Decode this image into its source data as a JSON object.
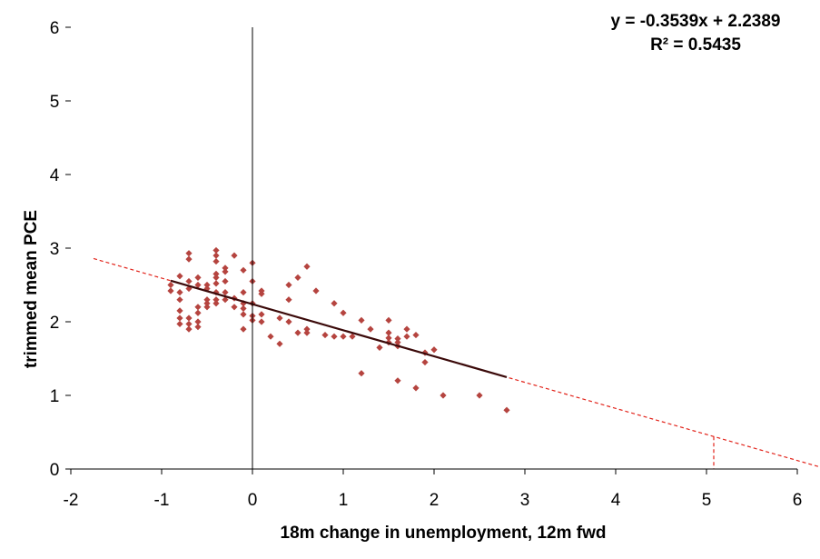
{
  "chart_data": {
    "type": "scatter",
    "title": "",
    "xlabel": "18m change in unemployment,  12m fwd",
    "ylabel": "trimmed mean PCE",
    "xlim": [
      -2,
      6
    ],
    "ylim": [
      0,
      6
    ],
    "x_ticks": [
      "-2",
      "-1",
      "0",
      "1",
      "2",
      "3",
      "4",
      "5",
      "6"
    ],
    "y_ticks": [
      "0",
      "1",
      "2",
      "3",
      "4",
      "5",
      "6"
    ],
    "grid": false,
    "legend": "none",
    "colors": {
      "points": "#B5443F",
      "fit_line": "#3B0A0A",
      "extension_line": "#E2231A",
      "axes": "#000000"
    },
    "annotation": {
      "equation": "y = -0.3539x  + 2.2389",
      "r_squared": "R² = 0.5435"
    },
    "fit": {
      "slope": -0.3539,
      "intercept": 2.2389,
      "solid_x_range": [
        -0.9,
        2.8
      ],
      "dashed_x_range": [
        -1.75,
        6.25
      ]
    },
    "marker_x": 5.08,
    "points": [
      [
        -0.9,
        2.5
      ],
      [
        -0.9,
        2.42
      ],
      [
        -0.8,
        2.62
      ],
      [
        -0.8,
        2.4
      ],
      [
        -0.8,
        2.3
      ],
      [
        -0.8,
        2.15
      ],
      [
        -0.8,
        2.05
      ],
      [
        -0.8,
        1.97
      ],
      [
        -0.7,
        2.93
      ],
      [
        -0.7,
        2.85
      ],
      [
        -0.7,
        2.55
      ],
      [
        -0.7,
        2.45
      ],
      [
        -0.7,
        2.05
      ],
      [
        -0.7,
        1.97
      ],
      [
        -0.7,
        1.9
      ],
      [
        -0.6,
        2.6
      ],
      [
        -0.6,
        2.5
      ],
      [
        -0.6,
        2.2
      ],
      [
        -0.6,
        2.12
      ],
      [
        -0.6,
        2.0
      ],
      [
        -0.6,
        1.93
      ],
      [
        -0.5,
        2.5
      ],
      [
        -0.5,
        2.45
      ],
      [
        -0.5,
        2.3
      ],
      [
        -0.5,
        2.25
      ],
      [
        -0.5,
        2.2
      ],
      [
        -0.4,
        2.97
      ],
      [
        -0.4,
        2.9
      ],
      [
        -0.4,
        2.82
      ],
      [
        -0.4,
        2.65
      ],
      [
        -0.4,
        2.6
      ],
      [
        -0.4,
        2.52
      ],
      [
        -0.4,
        2.4
      ],
      [
        -0.4,
        2.3
      ],
      [
        -0.4,
        2.25
      ],
      [
        -0.3,
        2.73
      ],
      [
        -0.3,
        2.68
      ],
      [
        -0.3,
        2.55
      ],
      [
        -0.3,
        2.4
      ],
      [
        -0.3,
        2.3
      ],
      [
        -0.2,
        2.9
      ],
      [
        -0.2,
        2.32
      ],
      [
        -0.2,
        2.2
      ],
      [
        -0.1,
        2.7
      ],
      [
        -0.1,
        2.4
      ],
      [
        -0.1,
        2.25
      ],
      [
        -0.1,
        2.18
      ],
      [
        -0.1,
        2.1
      ],
      [
        -0.1,
        1.9
      ],
      [
        0.0,
        2.8
      ],
      [
        0.0,
        2.55
      ],
      [
        0.0,
        2.25
      ],
      [
        0.0,
        2.08
      ],
      [
        0.0,
        2.02
      ],
      [
        0.1,
        2.42
      ],
      [
        0.1,
        2.38
      ],
      [
        0.1,
        2.1
      ],
      [
        0.1,
        2.0
      ],
      [
        0.2,
        1.8
      ],
      [
        0.3,
        2.05
      ],
      [
        0.3,
        1.7
      ],
      [
        0.4,
        2.5
      ],
      [
        0.4,
        2.3
      ],
      [
        0.4,
        2.0
      ],
      [
        0.5,
        2.6
      ],
      [
        0.5,
        1.85
      ],
      [
        0.6,
        2.75
      ],
      [
        0.6,
        1.9
      ],
      [
        0.6,
        1.85
      ],
      [
        0.7,
        2.42
      ],
      [
        0.8,
        1.82
      ],
      [
        0.9,
        2.25
      ],
      [
        0.9,
        1.8
      ],
      [
        1.0,
        2.12
      ],
      [
        1.0,
        1.8
      ],
      [
        1.1,
        1.8
      ],
      [
        1.2,
        2.02
      ],
      [
        1.2,
        1.3
      ],
      [
        1.3,
        1.9
      ],
      [
        1.4,
        1.65
      ],
      [
        1.5,
        2.02
      ],
      [
        1.5,
        1.85
      ],
      [
        1.5,
        1.78
      ],
      [
        1.5,
        1.72
      ],
      [
        1.6,
        1.77
      ],
      [
        1.6,
        1.72
      ],
      [
        1.6,
        1.67
      ],
      [
        1.6,
        1.2
      ],
      [
        1.7,
        1.9
      ],
      [
        1.7,
        1.8
      ],
      [
        1.8,
        1.82
      ],
      [
        1.8,
        1.1
      ],
      [
        1.9,
        1.58
      ],
      [
        1.9,
        1.45
      ],
      [
        2.0,
        1.62
      ],
      [
        2.1,
        1.0
      ],
      [
        2.5,
        1.0
      ],
      [
        2.8,
        0.8
      ]
    ]
  }
}
